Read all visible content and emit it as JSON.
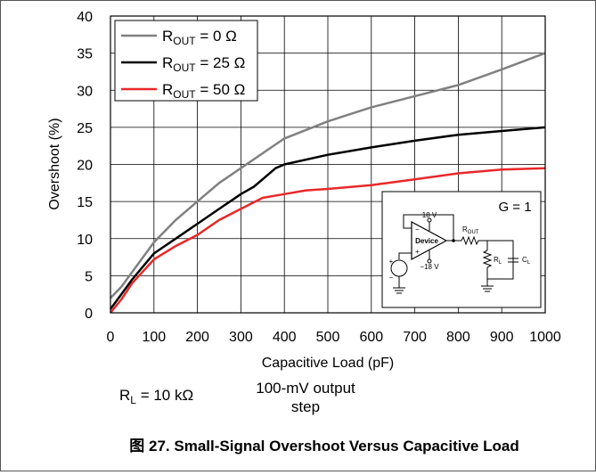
{
  "chart_data": {
    "type": "line",
    "xlabel": "Capacitive Load (pF)",
    "ylabel": "Overshoot (%)",
    "xlim": [
      0,
      1000
    ],
    "ylim": [
      0,
      40
    ],
    "x_ticks": [
      "0",
      "100",
      "200",
      "300",
      "400",
      "500",
      "600",
      "700",
      "800",
      "900",
      "1000"
    ],
    "y_ticks": [
      "0",
      "5",
      "10",
      "15",
      "20",
      "25",
      "30",
      "35",
      "40"
    ],
    "grid": true,
    "legend_position": "top-left",
    "series": [
      {
        "name_main": "R",
        "name_sub": "OUT",
        "name_rest": " = 0 Ω",
        "color": "#808080",
        "points": [
          [
            0,
            2
          ],
          [
            25,
            3.5
          ],
          [
            50,
            5.5
          ],
          [
            100,
            9.5
          ],
          [
            150,
            12.5
          ],
          [
            200,
            15
          ],
          [
            250,
            17.5
          ],
          [
            300,
            19.5
          ],
          [
            350,
            21.5
          ],
          [
            400,
            23.5
          ],
          [
            500,
            25.8
          ],
          [
            600,
            27.7
          ],
          [
            700,
            29.2
          ],
          [
            800,
            30.7
          ],
          [
            900,
            32.8
          ],
          [
            1000,
            35
          ]
        ]
      },
      {
        "name_main": "R",
        "name_sub": "OUT",
        "name_rest": " = 25 Ω",
        "color": "#000000",
        "points": [
          [
            0,
            0.5
          ],
          [
            25,
            2.5
          ],
          [
            50,
            4.5
          ],
          [
            100,
            8
          ],
          [
            150,
            10
          ],
          [
            200,
            12
          ],
          [
            250,
            14
          ],
          [
            300,
            16
          ],
          [
            330,
            17
          ],
          [
            350,
            18
          ],
          [
            380,
            19.5
          ],
          [
            400,
            20
          ],
          [
            500,
            21.3
          ],
          [
            600,
            22.3
          ],
          [
            700,
            23.2
          ],
          [
            800,
            24
          ],
          [
            900,
            24.5
          ],
          [
            1000,
            25
          ]
        ]
      },
      {
        "name_main": "R",
        "name_sub": "OUT",
        "name_rest": " = 50 Ω",
        "color": "#e8282a",
        "points": [
          [
            0,
            0
          ],
          [
            25,
            1.8
          ],
          [
            50,
            4
          ],
          [
            100,
            7.2
          ],
          [
            150,
            9
          ],
          [
            200,
            10.5
          ],
          [
            250,
            12.5
          ],
          [
            300,
            14
          ],
          [
            350,
            15.5
          ],
          [
            400,
            16
          ],
          [
            450,
            16.5
          ],
          [
            500,
            16.7
          ],
          [
            600,
            17.2
          ],
          [
            700,
            18
          ],
          [
            800,
            18.8
          ],
          [
            900,
            19.3
          ],
          [
            1000,
            19.5
          ]
        ]
      }
    ],
    "inset": {
      "gain": "G = 1",
      "supply_pos": "18 V",
      "supply_neg": "−18 V",
      "device": "Device",
      "r_out_main": "R",
      "r_out_sub": "OUT",
      "r_l_main": "R",
      "r_l_sub": "L",
      "c_l_main": "C",
      "c_l_sub": "L",
      "minus_sign": "−",
      "plus_sign": "+"
    },
    "notes": {
      "rl_main": "R",
      "rl_sub": "L",
      "rl_rest": " = 10 kΩ",
      "output_step_line1": "100-mV output",
      "output_step_line2": "step"
    }
  },
  "caption": "图 27. Small-Signal Overshoot Versus Capacitive Load"
}
